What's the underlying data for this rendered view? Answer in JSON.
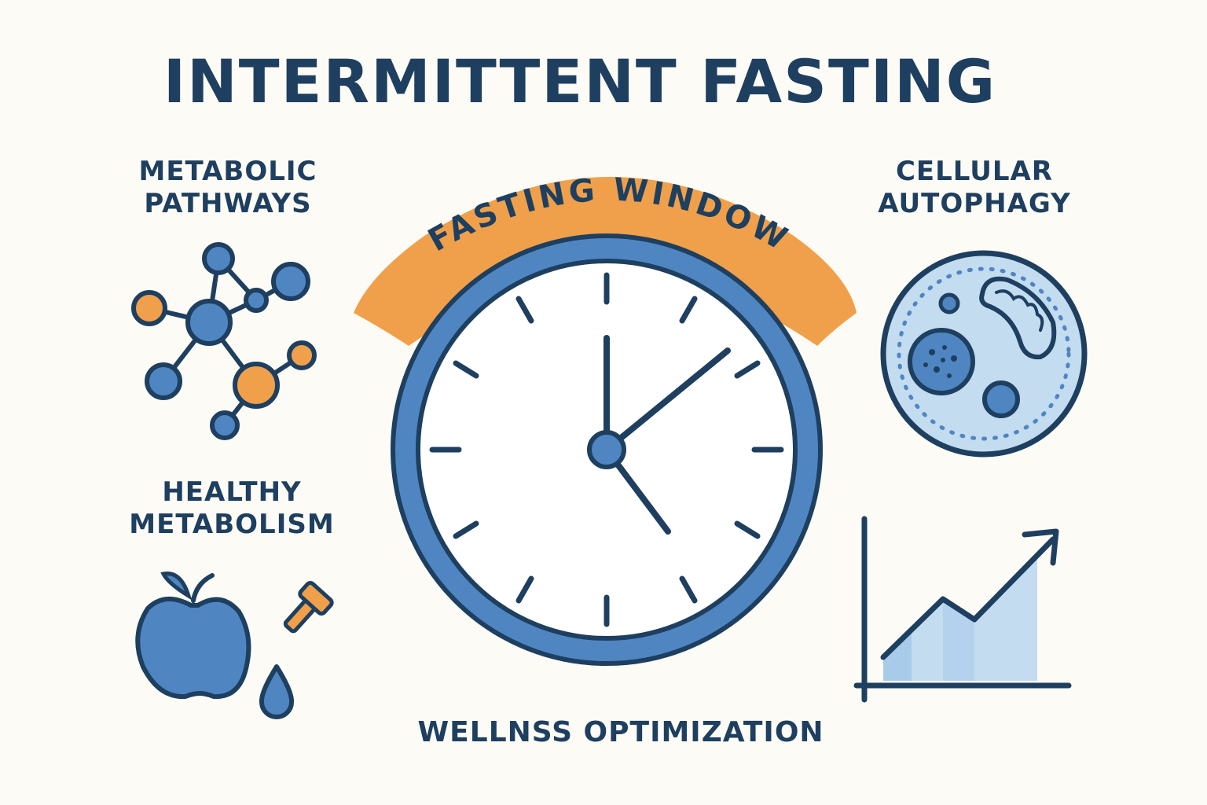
{
  "title": "INTERMITTENT FASTING",
  "labels": {
    "metabolic_pathways": "METABOLIC PATHWAYS",
    "cellular_autophagy": "CELLULAR AUTOPHAGY",
    "healthy_metabolism": "HEALTHY METABOLISM",
    "wellness_optimization": "WELLNSS OPTIMIZATION",
    "fasting_window": "FASTING WINDOW"
  },
  "colors": {
    "navy": "#1e3f5f",
    "blue": "#4f86c2",
    "light_blue": "#c3dcf0",
    "orange": "#f0a04b",
    "background": "#fdfbf5"
  },
  "icons": [
    "molecule-network-icon",
    "clock-icon",
    "cell-icon",
    "apple-icon",
    "dumbbell-icon",
    "water-drop-icon",
    "growth-chart-icon"
  ]
}
